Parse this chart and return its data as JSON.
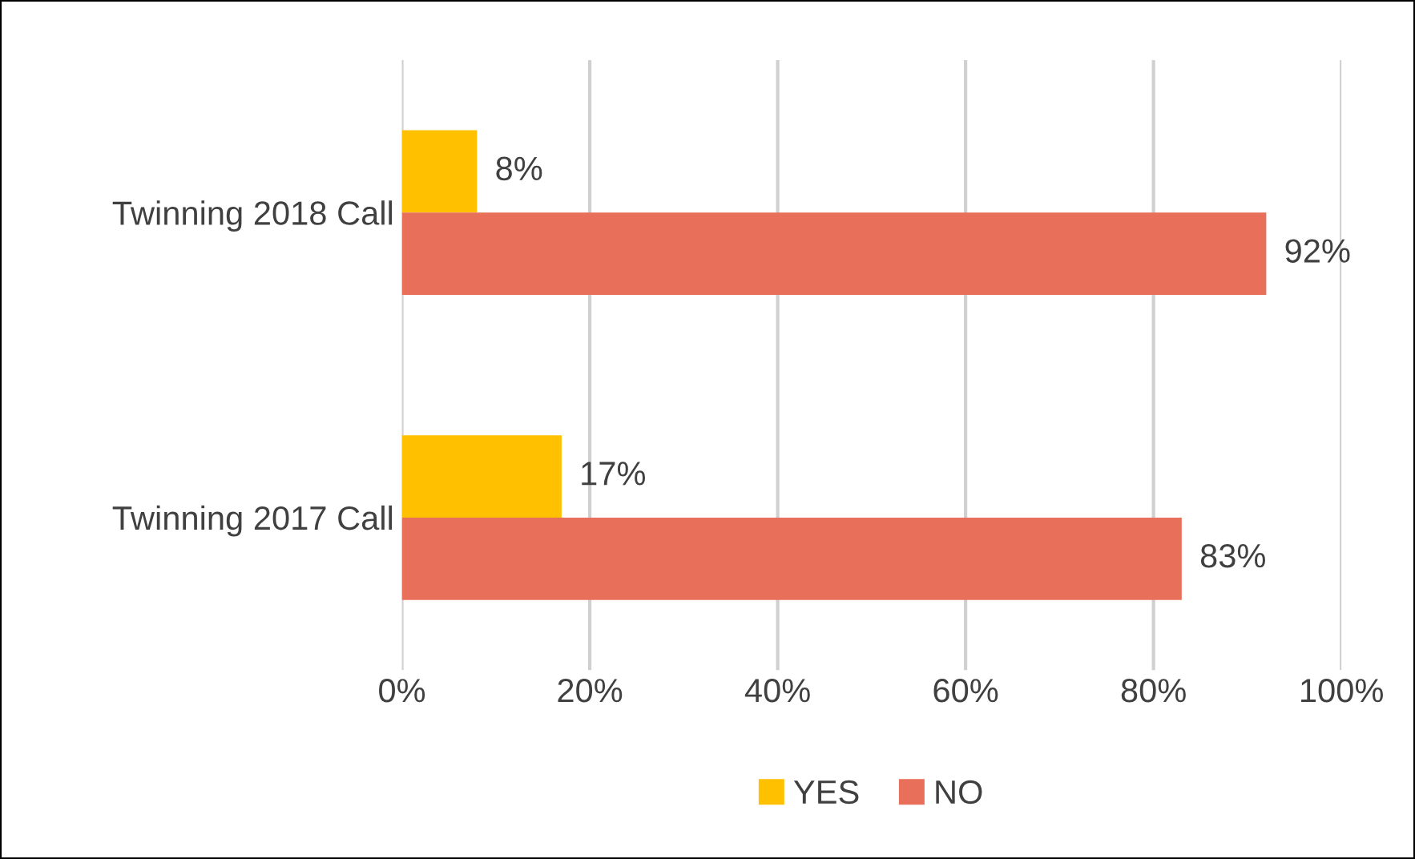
{
  "chart_data": {
    "type": "bar",
    "orientation": "horizontal",
    "categories": [
      "Twinning 2018 Call",
      "Twinning 2017 Call"
    ],
    "series": [
      {
        "name": "YES",
        "color": "#ffc000",
        "values": [
          8,
          17
        ],
        "value_labels": [
          "8%",
          "17%"
        ]
      },
      {
        "name": "NO",
        "color": "#e8705a",
        "values": [
          92,
          83
        ],
        "value_labels": [
          "92%",
          "83%"
        ]
      }
    ],
    "xlim": [
      0,
      100
    ],
    "xticks": [
      {
        "value": 0,
        "label": "0%"
      },
      {
        "value": 20,
        "label": "20%"
      },
      {
        "value": 40,
        "label": "40%"
      },
      {
        "value": 60,
        "label": "60%"
      },
      {
        "value": 80,
        "label": "80%"
      },
      {
        "value": 100,
        "label": "100%"
      }
    ],
    "grid": "x",
    "legend": "bottom"
  }
}
